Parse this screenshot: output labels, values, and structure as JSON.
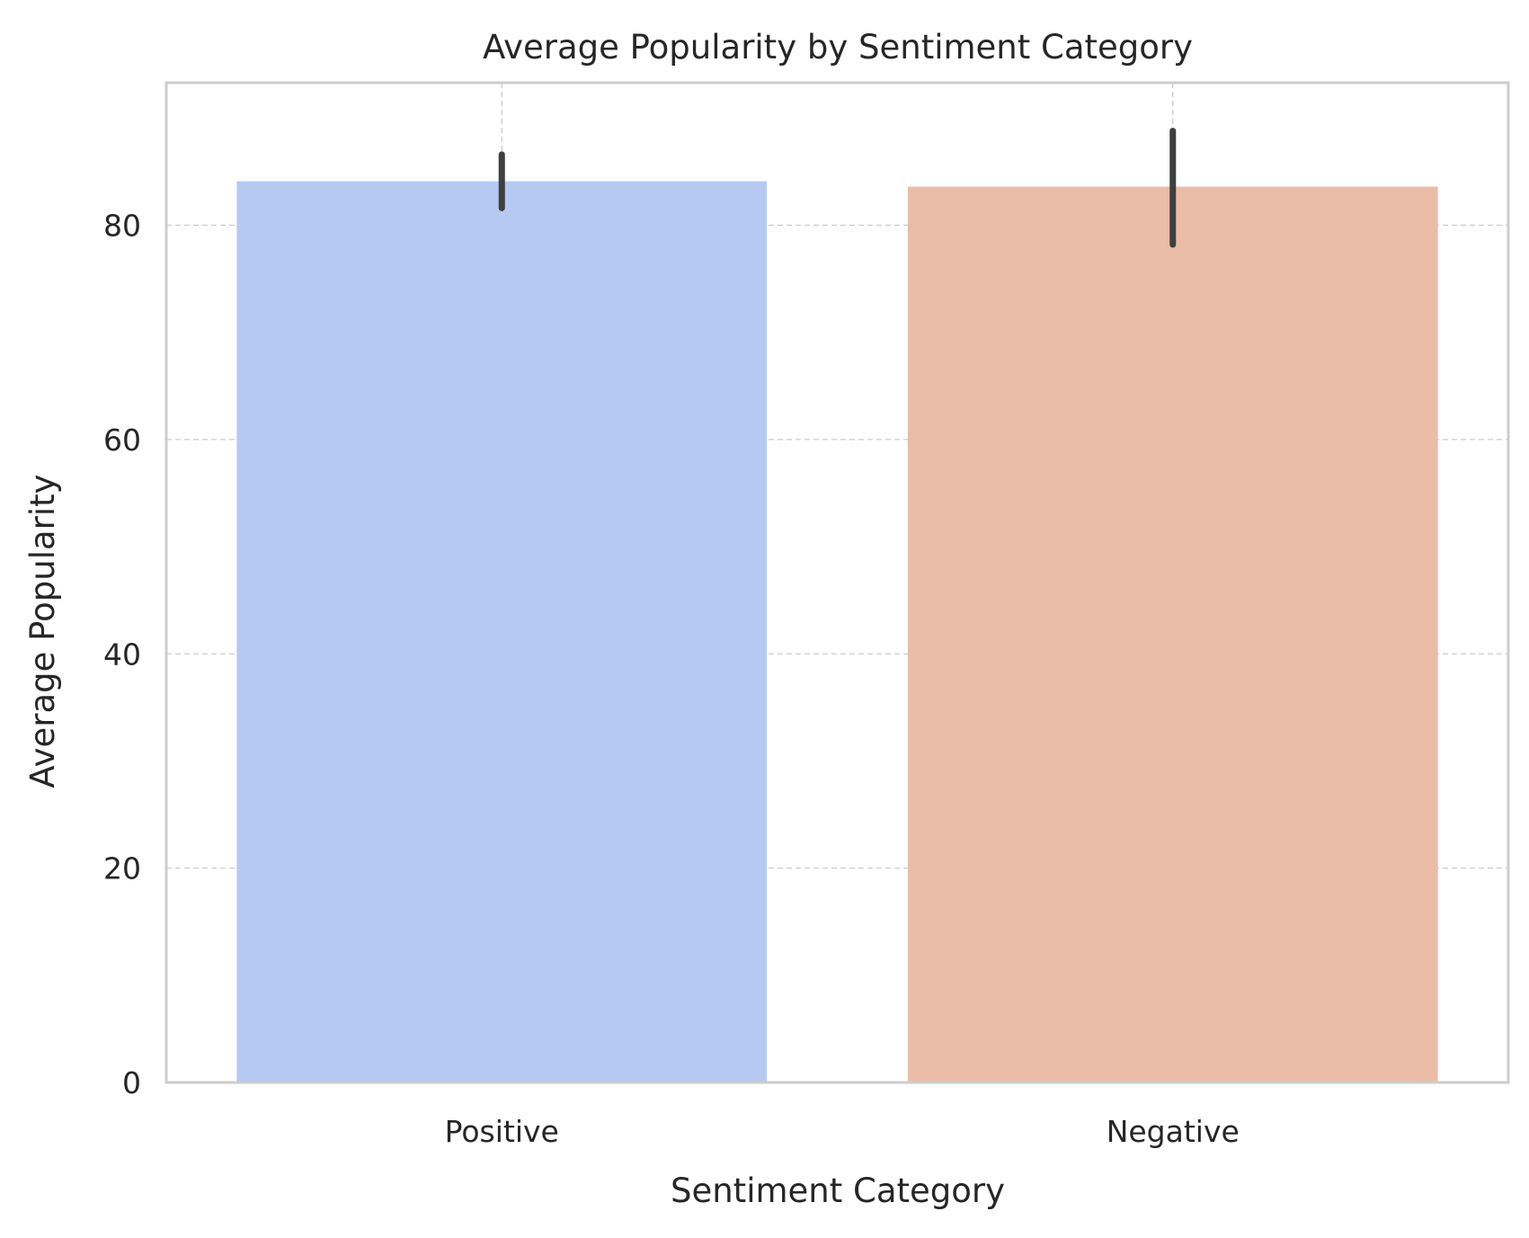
{
  "chart_data": {
    "type": "bar",
    "title": "Average Popularity by Sentiment Category",
    "xlabel": "Sentiment Category",
    "ylabel": "Average Popularity",
    "categories": [
      "Positive",
      "Negative"
    ],
    "values": [
      84.1,
      83.6
    ],
    "error_low": [
      81.6,
      78.2
    ],
    "error_high": [
      86.6,
      88.8
    ],
    "colors": [
      "#b5c9f2",
      "#ebbca8"
    ],
    "error_color": "#3f3f3f",
    "ylim": [
      0,
      93.3
    ],
    "yticks": [
      0,
      20,
      40,
      60,
      80
    ],
    "grid": true
  }
}
